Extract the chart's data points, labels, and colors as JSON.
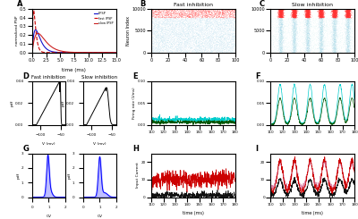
{
  "panel_B_title": "Fast inhibition",
  "panel_C_title": "Slow inhibition",
  "panel_D_title_fast": "Fast inhibition",
  "panel_D_title_slow": "Slow inhibition",
  "colors": {
    "epsp": "#1111cc",
    "fast_ipsp": "#cc0000",
    "slow_ipsp": "#cc2222",
    "excitatory": "#aaddee",
    "inhibitory": "#ff3333",
    "cyan_line": "#00cccc",
    "green_line": "#005500",
    "red_line": "#cc0000",
    "pink_line": "#dd88aa",
    "black_line": "#111111"
  },
  "panel_A": {
    "xlabel": "time (ms)",
    "ylabel": "normalized PSP",
    "xlim": [
      0,
      15
    ],
    "ylim": [
      0,
      0.5
    ],
    "legend": [
      "EPSP",
      "fast IPSP",
      "slow IPSP"
    ]
  },
  "panel_D": {
    "xlabel": "V (mv)",
    "ylabel": "pdf",
    "xlim": [
      -120,
      -40
    ],
    "ylim": [
      0,
      0.04
    ],
    "xticks": [
      -100,
      -50
    ]
  },
  "panel_G": {
    "xlabel": "CV",
    "ylabel": "pdf",
    "xlim": [
      0,
      2
    ],
    "ylim": [
      0,
      3
    ],
    "xticks": [
      0,
      1,
      2
    ]
  },
  "panel_EF": {
    "ylim": [
      0,
      0.1
    ],
    "yticks": [
      0,
      0.05,
      0.1
    ],
    "xlim": [
      110,
      180
    ]
  },
  "panel_HI": {
    "ylim": [
      0,
      25
    ],
    "yticks": [
      0,
      10,
      20
    ],
    "xlim": [
      110,
      180
    ],
    "xlabel": "time (ms)"
  },
  "burst_centers_C": [
    12,
    28,
    44,
    60,
    76,
    92
  ],
  "burst_centers_FI": [
    118,
    130,
    143,
    155,
    168,
    178
  ]
}
